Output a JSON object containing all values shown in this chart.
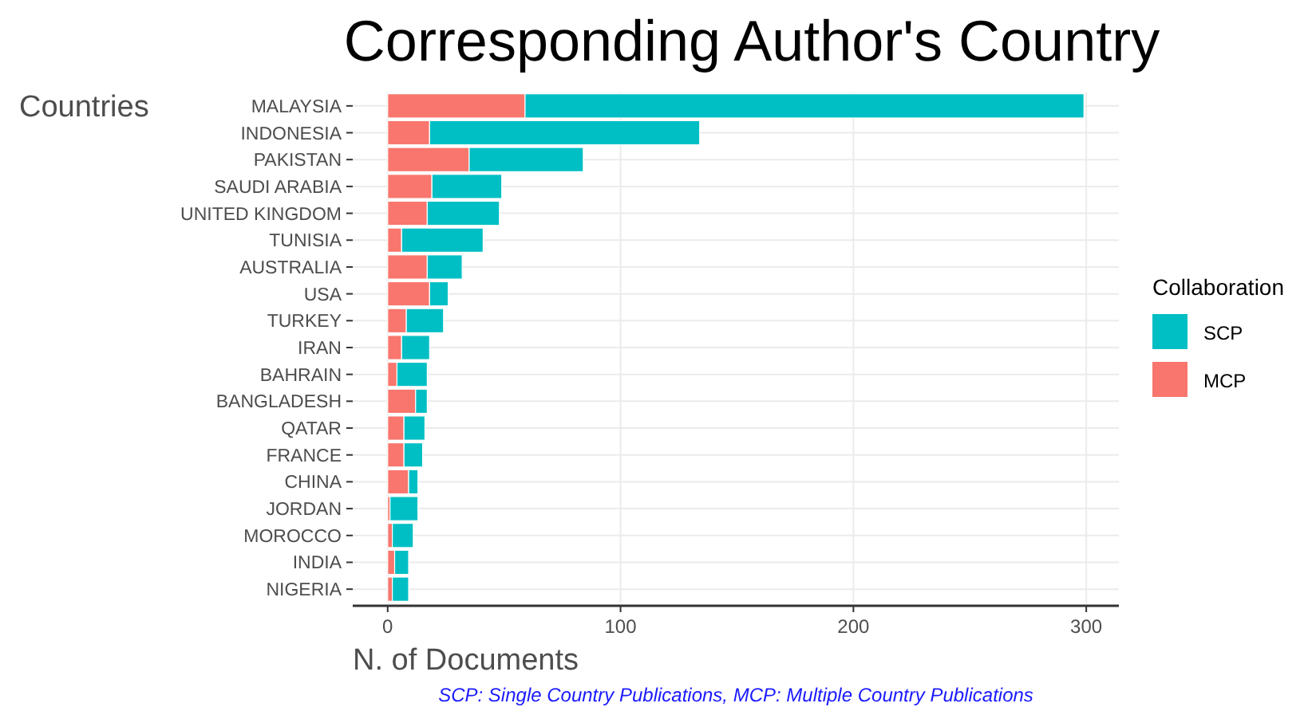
{
  "chart_data": {
    "type": "bar",
    "orientation": "horizontal",
    "stacked": true,
    "title": "Corresponding Author's Country",
    "xlabel": "N. of Documents",
    "ylabel": "Countries",
    "legend_title": "Collaboration",
    "legend": "right",
    "grid": true,
    "categories": [
      "MALAYSIA",
      "INDONESIA",
      "PAKISTAN",
      "SAUDI ARABIA",
      "UNITED KINGDOM",
      "TUNISIA",
      "AUSTRALIA",
      "USA",
      "TURKEY",
      "IRAN",
      "BAHRAIN",
      "BANGLADESH",
      "QATAR",
      "FRANCE",
      "CHINA",
      "JORDAN",
      "MOROCCO",
      "INDIA",
      "NIGERIA"
    ],
    "series": [
      {
        "name": "MCP",
        "color": "#f8766d",
        "values": [
          59,
          18,
          35,
          19,
          17,
          6,
          17,
          18,
          8,
          6,
          4,
          12,
          7,
          7,
          9,
          1,
          2,
          3,
          2
        ]
      },
      {
        "name": "SCP",
        "color": "#00bfc4",
        "values": [
          240,
          116,
          49,
          30,
          31,
          35,
          15,
          8,
          16,
          12,
          13,
          5,
          9,
          8,
          4,
          12,
          9,
          6,
          7
        ]
      }
    ],
    "xlim": [
      -15,
      314
    ],
    "xticks": [
      0,
      100,
      200,
      300
    ],
    "annotations": [
      "SCP: Single Country Publications, MCP: Multiple Country Publications"
    ]
  }
}
